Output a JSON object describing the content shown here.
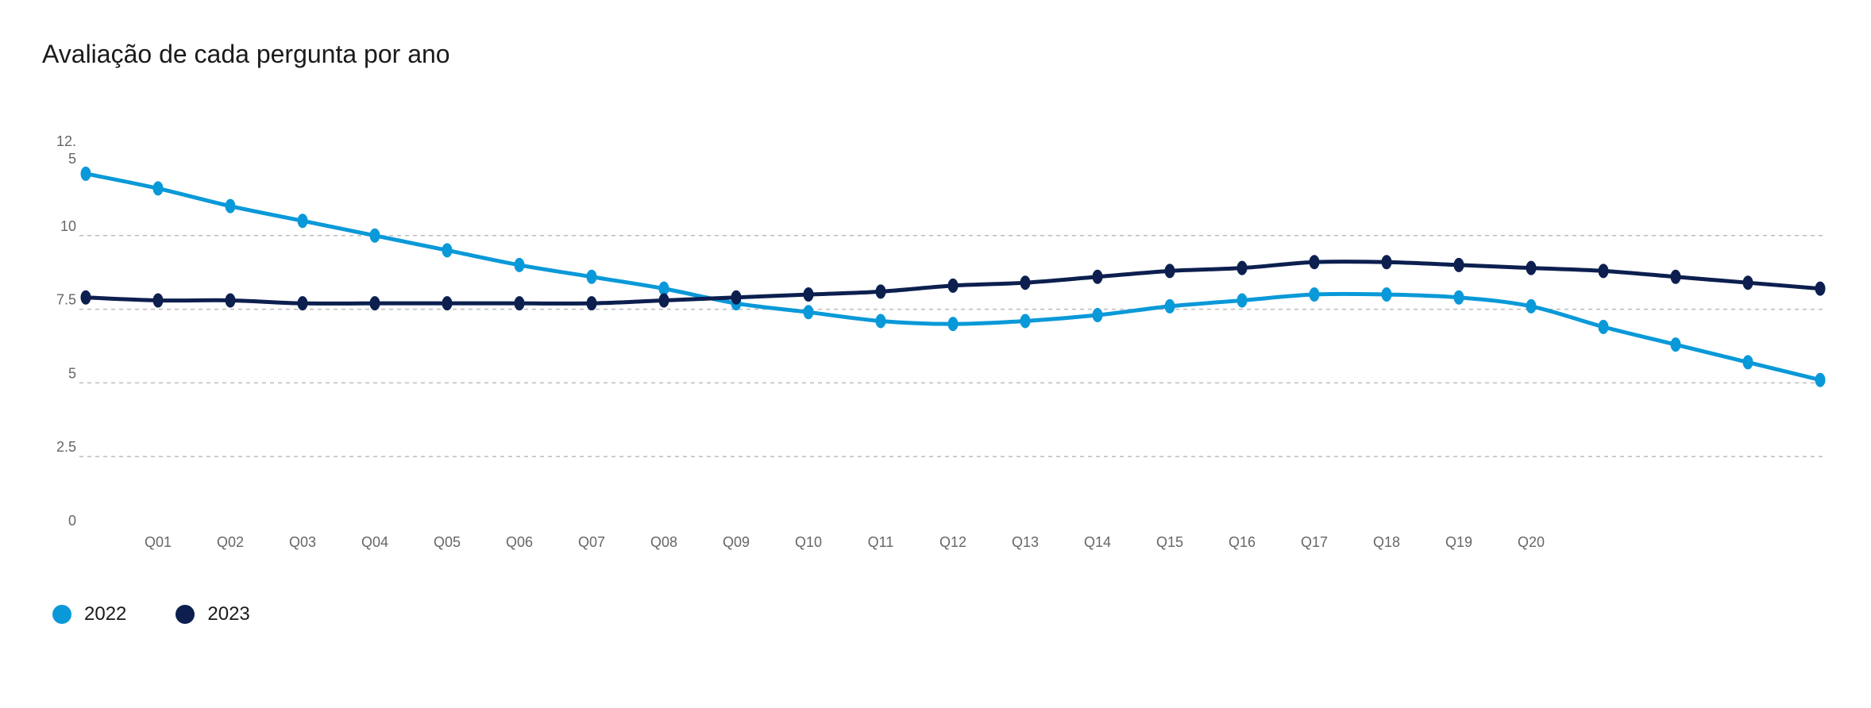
{
  "title": "Avaliação de cada pergunta por ano",
  "chart_data": {
    "type": "line",
    "title": "Avaliação de cada pergunta por ano",
    "xlabel": "",
    "ylabel": "",
    "ylim": [
      0,
      12.5
    ],
    "y_ticks": [
      "0",
      "2.5",
      "5",
      "7.5",
      "10",
      "12.\n5"
    ],
    "categories": [
      "",
      "Q01",
      "Q02",
      "Q03",
      "Q04",
      "Q05",
      "Q06",
      "Q07",
      "Q08",
      "Q09",
      "Q10",
      "Q11",
      "Q12",
      "Q13",
      "Q14",
      "Q15",
      "Q16",
      "Q17",
      "Q18",
      "Q19",
      "Q20",
      "",
      "",
      "",
      ""
    ],
    "series": [
      {
        "name": "2022",
        "color": "#0a99d8",
        "values": [
          12.1,
          11.6,
          11.0,
          10.5,
          10.0,
          9.5,
          9.0,
          8.6,
          8.2,
          7.7,
          7.4,
          7.1,
          7.0,
          7.1,
          7.3,
          7.6,
          7.8,
          8.0,
          8.0,
          7.9,
          7.6,
          6.9,
          6.3,
          5.7,
          5.1
        ]
      },
      {
        "name": "2023",
        "color": "#0c1f4f",
        "values": [
          7.9,
          7.8,
          7.8,
          7.7,
          7.7,
          7.7,
          7.7,
          7.7,
          7.8,
          7.9,
          8.0,
          8.1,
          8.3,
          8.4,
          8.6,
          8.8,
          8.9,
          9.1,
          9.1,
          9.0,
          8.9,
          8.8,
          8.6,
          8.4,
          8.2
        ]
      }
    ],
    "grid": "horizontal dashed",
    "legend_position": "bottom-left"
  }
}
